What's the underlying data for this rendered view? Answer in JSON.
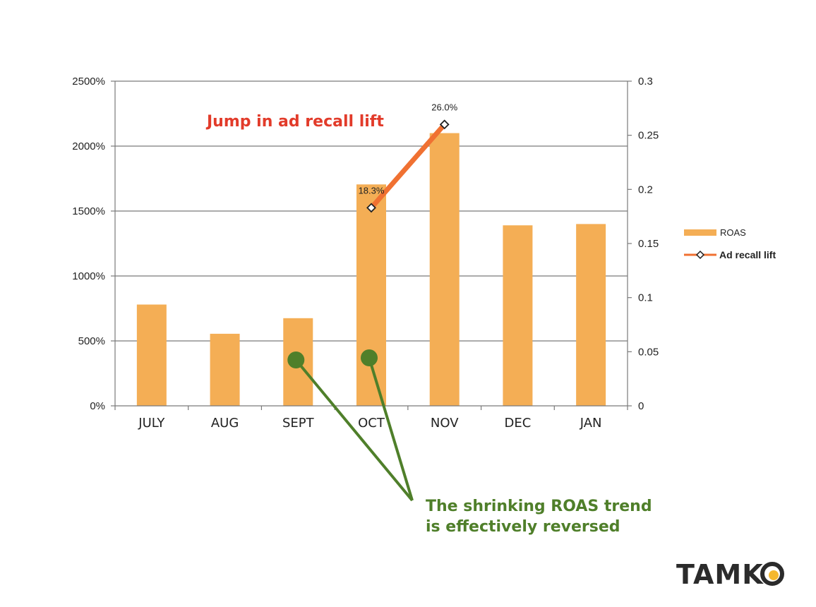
{
  "chart_data": {
    "type": "bar",
    "categories": [
      "JULY",
      "AUG",
      "SEPT",
      "OCT",
      "NOV",
      "DEC",
      "JAN"
    ],
    "series": [
      {
        "name": "ROAS",
        "axis": "left",
        "type": "bar",
        "color": "#F4AE55",
        "values": [
          780,
          555,
          675,
          1705,
          2100,
          1390,
          1400
        ]
      },
      {
        "name": "Ad recall lift",
        "axis": "right",
        "type": "line",
        "color": "#F07132",
        "x": [
          "OCT",
          "NOV"
        ],
        "values": [
          0.183,
          0.26
        ],
        "data_labels": [
          "18.3%",
          "26.0%"
        ]
      }
    ],
    "y_left": {
      "ticks": [
        0,
        500,
        1000,
        1500,
        2000,
        2500
      ],
      "tick_labels": [
        "0%",
        "500%",
        "1000%",
        "1500%",
        "2000%",
        "2500%"
      ],
      "ylim": [
        0,
        2500
      ]
    },
    "y_right": {
      "ticks": [
        0,
        0.05,
        0.1,
        0.15,
        0.2,
        0.25,
        0.3
      ],
      "tick_labels": [
        "0",
        "0.05",
        "0.1",
        "0.15",
        "0.2",
        "0.25",
        "0.3"
      ],
      "ylim": [
        0,
        0.3
      ]
    },
    "grid": true,
    "legend": {
      "position": "right",
      "entries": [
        "ROAS",
        "Ad recall lift"
      ]
    },
    "annotations": [
      {
        "text": "Jump in ad recall lift",
        "color": "#E23B2A"
      },
      {
        "lines": [
          "The shrinking ROAS trend",
          "is effectively reversed"
        ],
        "color": "#4F7F2A",
        "points_to": [
          "SEPT",
          "OCT"
        ]
      }
    ]
  },
  "logo": {
    "text": "TAMK",
    "accent_color": "#F5B82E"
  }
}
